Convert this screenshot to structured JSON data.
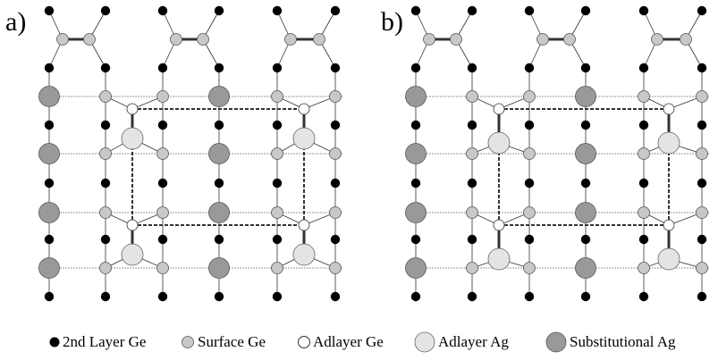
{
  "panels": [
    {
      "label": "a)"
    },
    {
      "label": "b)"
    }
  ],
  "legend": [
    {
      "label": "2nd Layer Ge"
    },
    {
      "label": "Surface Ge"
    },
    {
      "label": "Adlayer Ge"
    },
    {
      "label": "Adlayer Ag"
    },
    {
      "label": "Substitutional Ag"
    }
  ]
}
